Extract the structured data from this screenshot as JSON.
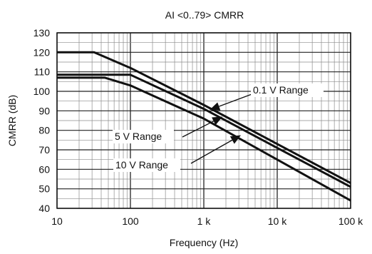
{
  "chart_data": {
    "type": "line",
    "title": "AI <0..79> CMRR",
    "xlabel": "Frequency (Hz)",
    "ylabel": "CMRR (dB)",
    "x_scale": "log",
    "xlim": [
      10,
      100000
    ],
    "ylim": [
      40,
      130
    ],
    "x_ticks": [
      10,
      100,
      1000,
      10000,
      100000
    ],
    "x_tick_labels": [
      "10",
      "100",
      "1 k",
      "10 k",
      "100 k"
    ],
    "y_ticks": [
      40,
      50,
      60,
      70,
      80,
      90,
      100,
      110,
      120,
      130
    ],
    "y_tick_labels": [
      "40",
      "50",
      "60",
      "70",
      "80",
      "90",
      "100",
      "110",
      "120",
      "130"
    ],
    "grid": true,
    "line_color": "#111111",
    "series": [
      {
        "name": "0.1 V  Range",
        "x": [
          10,
          32,
          100,
          1000,
          10000,
          100000
        ],
        "y": [
          120,
          120,
          112,
          93,
          73,
          53
        ]
      },
      {
        "name": "5 V  Range",
        "x": [
          10,
          100,
          1000,
          10000,
          100000
        ],
        "y": [
          108.5,
          108.5,
          91,
          71,
          51
        ]
      },
      {
        "name": "10 V  Range",
        "x": [
          10,
          45,
          100,
          1000,
          10000,
          100000
        ],
        "y": [
          107,
          107,
          103,
          86,
          65,
          44
        ]
      }
    ],
    "annotations": [
      {
        "series": 0,
        "text": "0.1 V  Range",
        "point_x": 1200,
        "point_y": 90.5
      },
      {
        "series": 1,
        "text": "5 V  Range",
        "point_x": 1800,
        "point_y": 87
      },
      {
        "series": 2,
        "text": "10 V  Range",
        "point_x": 3200,
        "point_y": 77.5
      }
    ]
  }
}
